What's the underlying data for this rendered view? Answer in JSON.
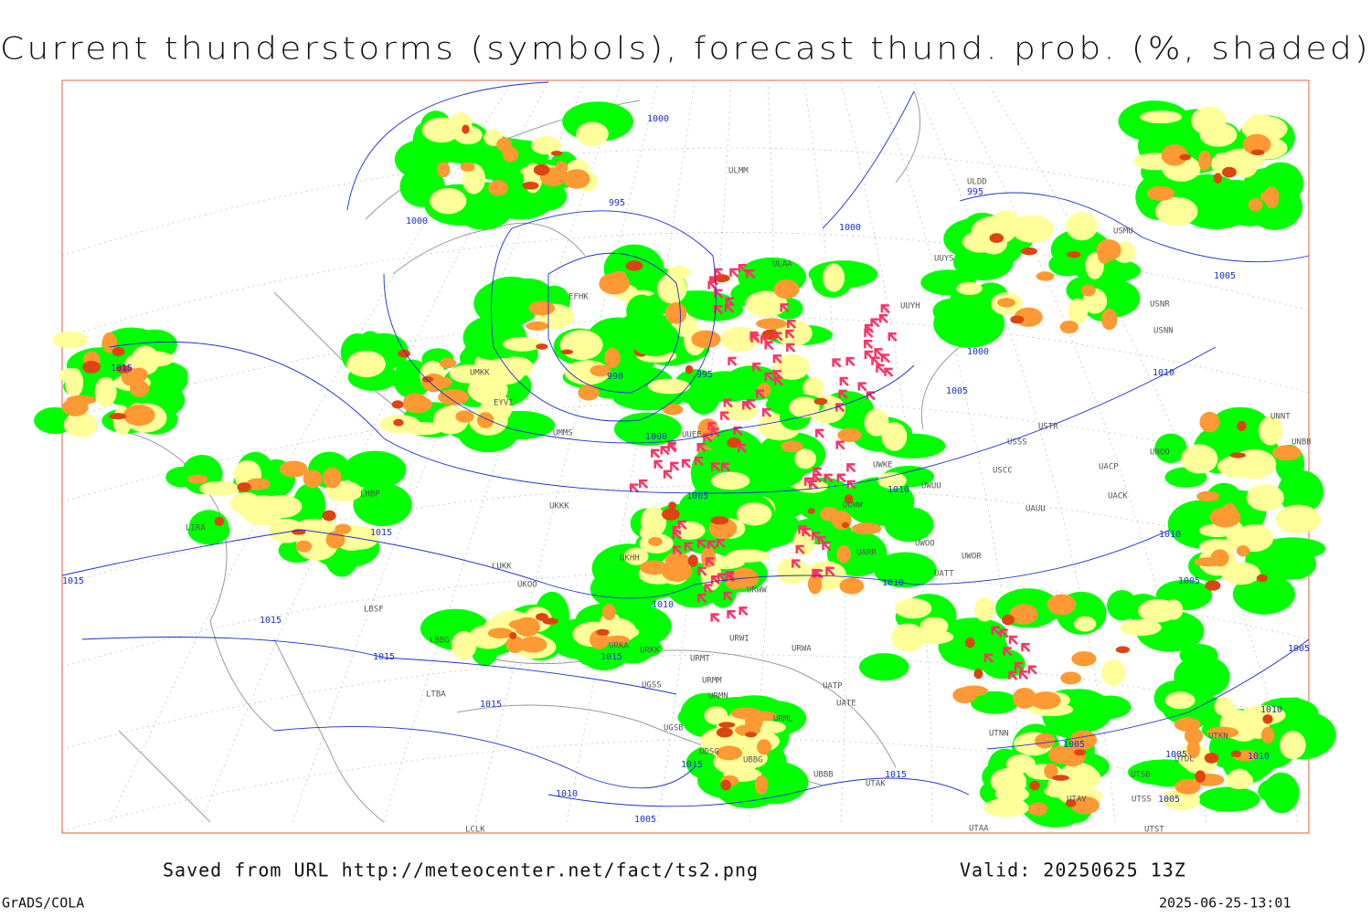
{
  "header": {
    "title": "Current thunderstorms (symbols), forecast thund. prob. (%, shaded)"
  },
  "map": {
    "isobar_labels": [
      "1000",
      "995",
      "1000",
      "1000",
      "995",
      "1005",
      "1015",
      "990",
      "995",
      "1000",
      "1010",
      "1005",
      "1000",
      "1005",
      "1010",
      "1015",
      "1010",
      "1015",
      "1005",
      "1010",
      "1010",
      "1015",
      "1015",
      "1015",
      "1005",
      "1015",
      "1010",
      "1005",
      "1005",
      "1015",
      "1010",
      "1015",
      "1010",
      "1005",
      "1005"
    ],
    "stations": [
      "ULMM",
      "ULDD",
      "ULAA",
      "UUYS",
      "USMU",
      "UUYH",
      "USNR",
      "USNN",
      "EFHK",
      "UMKK",
      "EYVI",
      "UMMS",
      "USSS",
      "USTR",
      "UNOO",
      "USCC",
      "UACP",
      "UWKE",
      "UWUU",
      "UAUU",
      "UACK",
      "UWOO",
      "UWOR",
      "UATT",
      "UARR",
      "UKKK",
      "UKOO",
      "LUKK",
      "UKHH",
      "LHBP",
      "LIRA",
      "LBSF",
      "LBBG",
      "URKA",
      "URKK",
      "URMT",
      "URWA",
      "URWI",
      "URWW",
      "UGSS",
      "URMM",
      "URMN",
      "UGSB",
      "UDSG",
      "UBBB",
      "UBBG",
      "URML",
      "UATE",
      "UATP",
      "UTAK",
      "UTNN",
      "UTAV",
      "UTSB",
      "UTSS",
      "UTST",
      "UTAA",
      "UTDL",
      "UTKN",
      "LTBA",
      "LCLK",
      "UNNT",
      "UNBB",
      "UUWW",
      "UUEE"
    ]
  },
  "footer": {
    "source": "Saved from URL http://meteocenter.net/fact/ts2.png",
    "valid": "Valid: 20250625 13Z",
    "credit": "GrADS/COLA",
    "timestamp": "2025-06-25-13:01"
  }
}
